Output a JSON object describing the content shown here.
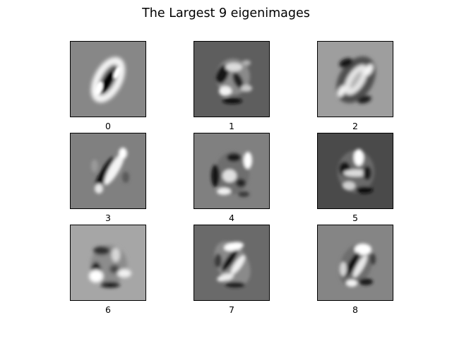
{
  "title": "The Largest 9 eigenimages",
  "panels": [
    {
      "label": "0",
      "background": "#878787"
    },
    {
      "label": "1",
      "background": "#5e5e5e"
    },
    {
      "label": "2",
      "background": "#9e9e9e"
    },
    {
      "label": "3",
      "background": "#808080"
    },
    {
      "label": "4",
      "background": "#808080"
    },
    {
      "label": "5",
      "background": "#4a4a4a"
    },
    {
      "label": "6",
      "background": "#a6a6a6"
    },
    {
      "label": "7",
      "background": "#6a6a6a"
    },
    {
      "label": "8",
      "background": "#858585"
    }
  ]
}
